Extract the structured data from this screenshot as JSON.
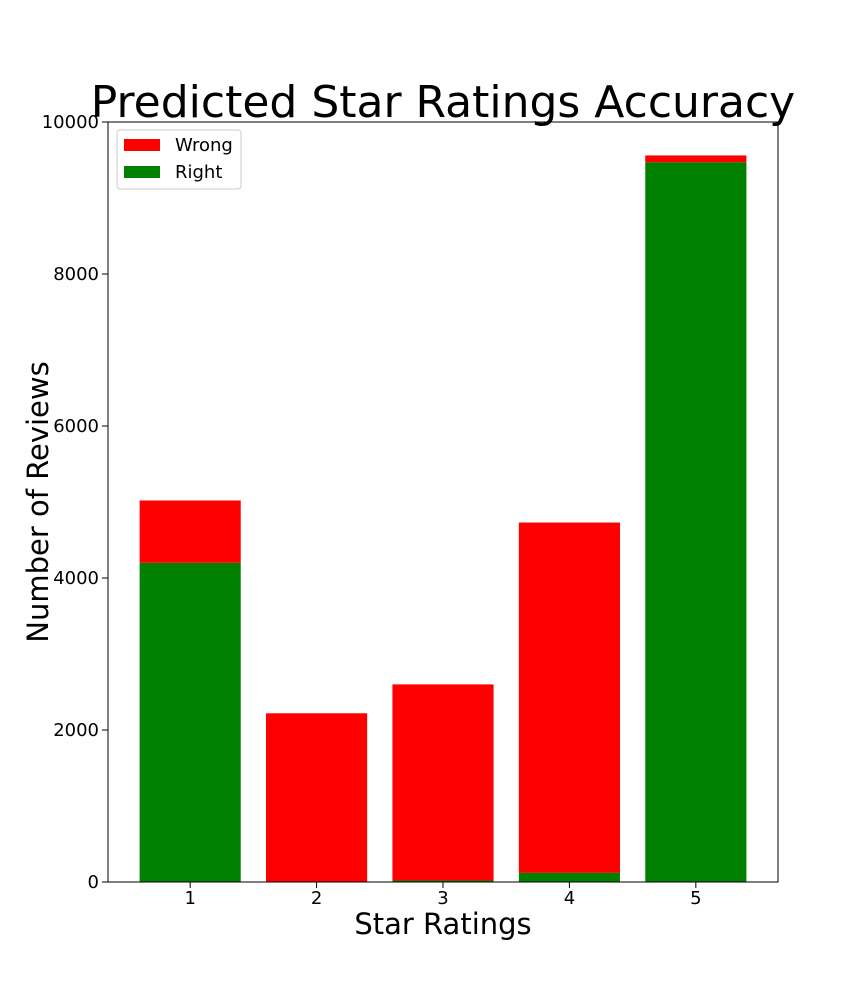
{
  "chart_data": {
    "type": "bar",
    "stacked": true,
    "title": "Predicted Star Ratings Accuracy",
    "xlabel": "Star Ratings",
    "ylabel": "Number of Reviews",
    "categories": [
      "1",
      "2",
      "3",
      "4",
      "5"
    ],
    "ylim": [
      0,
      10000
    ],
    "yticks": [
      "0",
      "2000",
      "4000",
      "6000",
      "8000",
      "10000"
    ],
    "series": [
      {
        "name": "Right",
        "color": "#008000",
        "values": [
          4200,
          0,
          20,
          120,
          9470
        ]
      },
      {
        "name": "Wrong",
        "color": "#ff0000",
        "values": [
          820,
          2220,
          2580,
          4610,
          90
        ]
      }
    ],
    "legend": {
      "placement": "upper-left",
      "order": [
        "Wrong",
        "Right"
      ]
    },
    "grid": false
  }
}
